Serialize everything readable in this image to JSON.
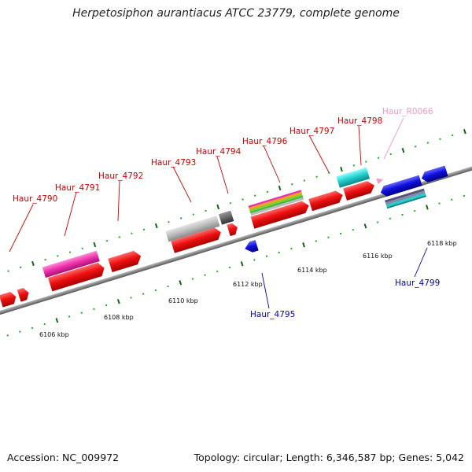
{
  "title": "Herpetosiphon aurantiacus ATCC 23779, complete genome",
  "footer": {
    "accession": "Accession: NC_009972",
    "info": "Topology: circular; Length: 6,346,587 bp; Genes: 5,042"
  },
  "scale_labels": [
    "6106 kbp",
    "6108 kbp",
    "6110 kbp",
    "6112 kbp",
    "6114 kbp",
    "6116 kbp",
    "6118 kbp"
  ],
  "genes": [
    {
      "name": "Haur_4790",
      "color": "#cc0000"
    },
    {
      "name": "Haur_4791",
      "color": "#cc0000"
    },
    {
      "name": "Haur_4792",
      "color": "#cc0000"
    },
    {
      "name": "Haur_4793",
      "color": "#cc0000"
    },
    {
      "name": "Haur_4794",
      "color": "#cc0000"
    },
    {
      "name": "Haur_4795",
      "color": "#0000aa"
    },
    {
      "name": "Haur_4796",
      "color": "#cc0000"
    },
    {
      "name": "Haur_4797",
      "color": "#cc0000"
    },
    {
      "name": "Haur_4798",
      "color": "#cc0000"
    },
    {
      "name": "Haur_R0066",
      "color": "#f29ac2"
    },
    {
      "name": "Haur_4799",
      "color": "#0000aa"
    }
  ],
  "colors": {
    "forward_gene": "#ee1111",
    "reverse_gene": "#1111dd",
    "pink_feature": "#ee2fa8",
    "cyan_feature": "#22cccc",
    "gray_feature": "#bbbbbb",
    "dark_gray_feature": "#666666",
    "tick_dark": "#116611",
    "tick_light": "#22aa22",
    "backbone": "#888888"
  }
}
